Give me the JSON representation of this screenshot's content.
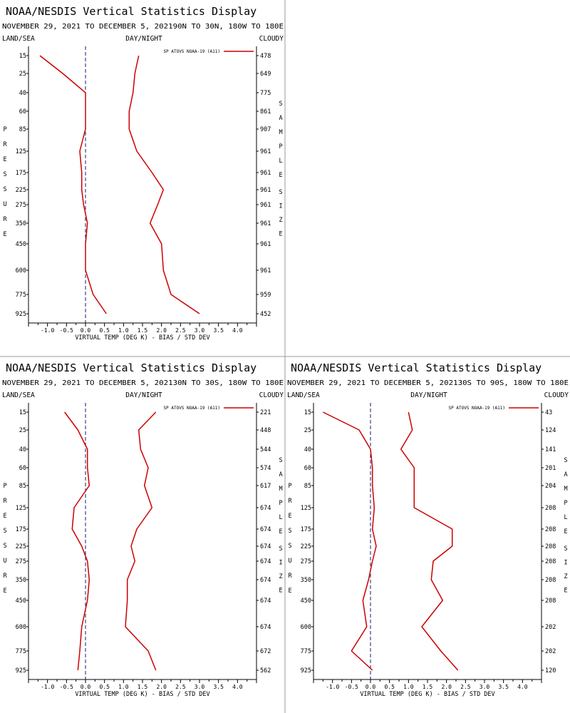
{
  "colors": {
    "series": "#cc0000",
    "axis": "#000000",
    "divider": "#9a9a9a",
    "zero_line": "#1a1a6a"
  },
  "panels": [
    {
      "title": "NOAA/NESDIS Vertical Statistics Display",
      "subtitle": "NOVEMBER 29, 2021 TO DECEMBER 5, 202190N TO 30N, 180W TO 180E",
      "header_left": "LAND/SEA",
      "header_center": "DAY/NIGHT",
      "header_right": "CLOUDY",
      "legend": "SP ATOVS NOAA-19 (A11)",
      "ylabel": "PRESSURE",
      "y2label": "SAMPLE SIZE",
      "xlabel": "VIRTUAL TEMP (DEG K) - BIAS / STD DEV"
    },
    {
      "title": "NOAA/NESDIS Vertical Statistics Display",
      "subtitle": "NOVEMBER 29, 2021 TO DECEMBER 5, 202130N TO 30S, 180W TO 180E",
      "header_left": "LAND/SEA",
      "header_center": "DAY/NIGHT",
      "header_right": "CLOUDY",
      "legend": "SP ATOVS NOAA-19 (A11)",
      "ylabel": "PRESSURE",
      "y2label": "SAMPLE SIZE",
      "xlabel": "VIRTUAL TEMP (DEG K) - BIAS / STD DEV"
    },
    {
      "title": "NOAA/NESDIS Vertical Statistics Display",
      "subtitle": "NOVEMBER 29, 2021 TO DECEMBER 5, 202130S TO 90S, 180W TO 180E",
      "header_left": "LAND/SEA",
      "header_center": "DAY/NIGHT",
      "header_right": "CLOUDY",
      "legend": "SP ATOVS NOAA-19 (A11)",
      "ylabel": "PRESSURE",
      "y2label": "SAMPLE SIZE",
      "xlabel": "VIRTUAL TEMP (DEG K) - BIAS / STD DEV"
    }
  ],
  "chart_data": [
    {
      "type": "line",
      "xlim": [
        -1.5,
        4.5
      ],
      "x_ticks": [
        "-1.0",
        "-0.5",
        "0.0",
        "0.5",
        "1.0",
        "1.5",
        "2.0",
        "2.5",
        "3.0",
        "3.5",
        "4.0"
      ],
      "pressure_levels": [
        "15",
        "25",
        "40",
        "60",
        "85",
        "125",
        "175",
        "225",
        "275",
        "350",
        "450",
        "600",
        "775",
        "925"
      ],
      "sample_size": [
        "478",
        "649",
        "775",
        "861",
        "907",
        "961",
        "961",
        "961",
        "961",
        "961",
        "961",
        "961",
        "959",
        "452"
      ],
      "series": [
        {
          "values": [
            -1.2,
            -0.6,
            0.0,
            0.0,
            0.0,
            -0.15,
            -0.1,
            -0.1,
            -0.05,
            0.05,
            0.0,
            0.0,
            0.2,
            0.55
          ]
        },
        {
          "values": [
            1.4,
            1.3,
            1.25,
            1.15,
            1.15,
            1.35,
            1.75,
            2.05,
            1.9,
            1.7,
            2.0,
            2.05,
            2.25,
            3.0
          ]
        }
      ]
    },
    {
      "type": "line",
      "xlim": [
        -1.5,
        4.5
      ],
      "x_ticks": [
        "-1.0",
        "-0.5",
        "0.0",
        "0.5",
        "1.0",
        "1.5",
        "2.0",
        "2.5",
        "3.0",
        "3.5",
        "4.0"
      ],
      "pressure_levels": [
        "15",
        "25",
        "40",
        "60",
        "85",
        "125",
        "175",
        "225",
        "275",
        "350",
        "450",
        "600",
        "775",
        "925"
      ],
      "sample_size": [
        "221",
        "448",
        "544",
        "574",
        "617",
        "674",
        "674",
        "674",
        "674",
        "674",
        "674",
        "674",
        "672",
        "562"
      ],
      "series": [
        {
          "values": [
            -0.55,
            -0.2,
            0.05,
            0.05,
            0.1,
            -0.3,
            -0.35,
            -0.1,
            0.05,
            0.1,
            0.05,
            -0.1,
            -0.15,
            -0.2
          ]
        },
        {
          "values": [
            1.85,
            1.4,
            1.45,
            1.65,
            1.55,
            1.75,
            1.35,
            1.2,
            1.3,
            1.1,
            1.1,
            1.05,
            1.65,
            1.85
          ]
        }
      ]
    },
    {
      "type": "line",
      "xlim": [
        -1.5,
        4.5
      ],
      "x_ticks": [
        "-1.0",
        "-0.5",
        "0.0",
        "0.5",
        "1.0",
        "1.5",
        "2.0",
        "2.5",
        "3.0",
        "3.5",
        "4.0"
      ],
      "pressure_levels": [
        "15",
        "25",
        "40",
        "60",
        "85",
        "125",
        "175",
        "225",
        "275",
        "350",
        "450",
        "600",
        "775",
        "925"
      ],
      "sample_size": [
        "43",
        "124",
        "141",
        "201",
        "204",
        "208",
        "208",
        "208",
        "208",
        "208",
        "208",
        "202",
        "202",
        "120"
      ],
      "series": [
        {
          "values": [
            -1.25,
            -0.3,
            0.0,
            0.05,
            0.05,
            0.1,
            0.05,
            0.15,
            0.05,
            -0.05,
            -0.2,
            -0.1,
            -0.5,
            0.05
          ]
        },
        {
          "values": [
            1.0,
            1.1,
            0.8,
            1.15,
            1.15,
            1.15,
            2.15,
            2.15,
            1.65,
            1.6,
            1.9,
            1.35,
            1.85,
            2.3
          ]
        }
      ]
    }
  ]
}
